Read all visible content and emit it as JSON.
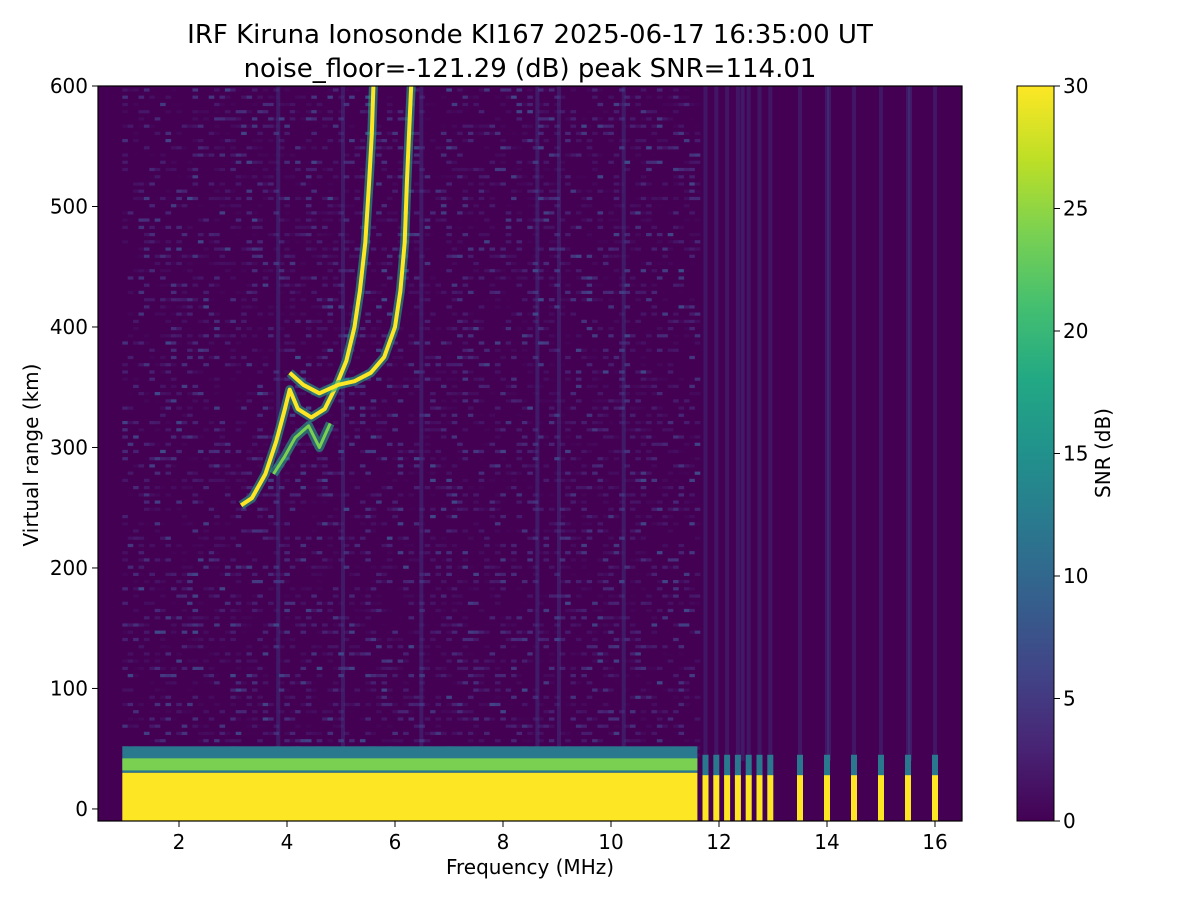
{
  "chart_data": {
    "type": "heatmap",
    "title_line1": "IRF Kiruna Ionosonde KI167 2025-06-17 16:35:00  UT",
    "title_line2": "noise_floor=-121.29 (dB) peak SNR=114.01",
    "xlabel": "Frequency (MHz)",
    "ylabel": "Virtual range (km)",
    "colorbar_label": "SNR (dB)",
    "colormap": "viridis",
    "xlim": [
      0.5,
      16.5
    ],
    "ylim": [
      -10,
      600
    ],
    "clim": [
      0,
      30
    ],
    "x_ticks": [
      2,
      4,
      6,
      8,
      10,
      12,
      14,
      16
    ],
    "x_tick_labels": [
      "2",
      "4",
      "6",
      "8",
      "10",
      "12",
      "14",
      "16"
    ],
    "y_ticks": [
      0,
      100,
      200,
      300,
      400,
      500,
      600
    ],
    "y_tick_labels": [
      "0",
      "100",
      "200",
      "300",
      "400",
      "500",
      "600"
    ],
    "colorbar_ticks": [
      0,
      5,
      10,
      15,
      20,
      25,
      30
    ],
    "colorbar_tick_labels": [
      "0",
      "5",
      "10",
      "15",
      "20",
      "25",
      "30"
    ],
    "continuous_sweep_range_mhz": [
      0.95,
      11.6
    ],
    "discrete_channels_mhz": [
      11.75,
      11.95,
      12.15,
      12.35,
      12.55,
      12.75,
      12.95,
      13.5,
      14.0,
      14.5,
      15.0,
      15.5,
      16.0
    ],
    "low_range_saturated_band_km": [
      -10,
      30
    ],
    "echo_traces": [
      {
        "name": "",
        "points": [
          [
            3.15,
            252
          ],
          [
            3.35,
            258
          ],
          [
            3.6,
            278
          ],
          [
            3.8,
            305
          ],
          [
            3.95,
            330
          ],
          [
            4.05,
            348
          ],
          [
            4.2,
            332
          ],
          [
            4.45,
            325
          ],
          [
            4.7,
            332
          ],
          [
            4.9,
            350
          ],
          [
            5.1,
            372
          ],
          [
            5.25,
            400
          ],
          [
            5.35,
            430
          ],
          [
            5.45,
            470
          ],
          [
            5.52,
            520
          ],
          [
            5.57,
            560
          ],
          [
            5.6,
            600
          ]
        ]
      },
      {
        "name": "",
        "points": [
          [
            4.05,
            362
          ],
          [
            4.3,
            352
          ],
          [
            4.6,
            345
          ],
          [
            4.95,
            352
          ],
          [
            5.25,
            355
          ],
          [
            5.55,
            362
          ],
          [
            5.8,
            375
          ],
          [
            6.0,
            400
          ],
          [
            6.1,
            430
          ],
          [
            6.18,
            470
          ],
          [
            6.22,
            520
          ],
          [
            6.26,
            560
          ],
          [
            6.3,
            600
          ]
        ]
      },
      {
        "name": "",
        "points": [
          [
            3.75,
            278
          ],
          [
            3.95,
            292
          ],
          [
            4.15,
            308
          ],
          [
            4.4,
            318
          ],
          [
            4.6,
            300
          ],
          [
            4.8,
            320
          ]
        ]
      }
    ]
  }
}
